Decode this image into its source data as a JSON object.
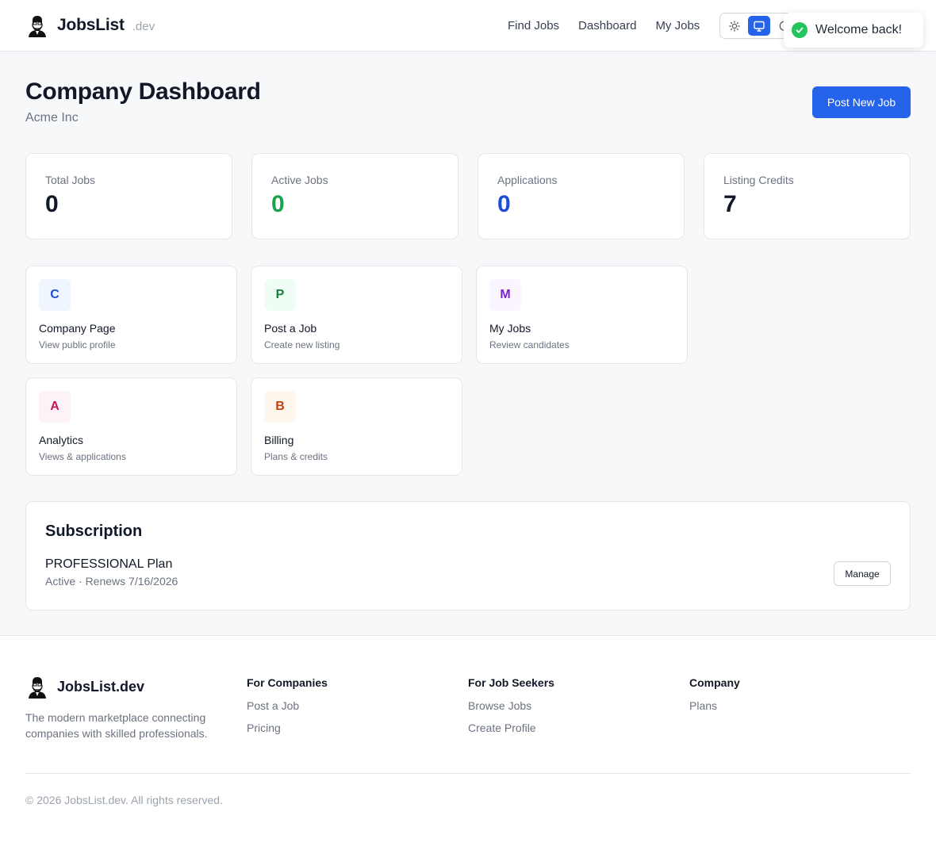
{
  "header": {
    "brand_name": "JobsList",
    "brand_suffix": ".dev",
    "nav": [
      "Find Jobs",
      "Dashboard",
      "My Jobs"
    ],
    "theme_modes": [
      "light",
      "system",
      "dark"
    ],
    "active_theme": "system"
  },
  "toast": {
    "message": "Welcome back!"
  },
  "page": {
    "title": "Company Dashboard",
    "company": "Acme Inc",
    "post_button": "Post New Job"
  },
  "stats": [
    {
      "label": "Total Jobs",
      "value": "0",
      "color": "#111827"
    },
    {
      "label": "Active Jobs",
      "value": "0",
      "color": "#16a34a"
    },
    {
      "label": "Applications",
      "value": "0",
      "color": "#1d4ed8"
    },
    {
      "label": "Listing Credits",
      "value": "7",
      "color": "#111827"
    }
  ],
  "tiles": [
    {
      "letter": "C",
      "title": "Company Page",
      "desc": "View public profile",
      "bg": "#eff6ff",
      "fg": "#1d4ed8"
    },
    {
      "letter": "P",
      "title": "Post a Job",
      "desc": "Create new listing",
      "bg": "#f0fdf4",
      "fg": "#15803d"
    },
    {
      "letter": "M",
      "title": "My Jobs",
      "desc": "Review candidates",
      "bg": "#faf5ff",
      "fg": "#7e22ce"
    },
    {
      "letter": "A",
      "title": "Analytics",
      "desc": "Views & applications",
      "bg": "#fdf2f8",
      "fg": "#be185d"
    },
    {
      "letter": "B",
      "title": "Billing",
      "desc": "Plans & credits",
      "bg": "#fff7ed",
      "fg": "#c2410c"
    }
  ],
  "subscription": {
    "title": "Subscription",
    "plan": "PROFESSIONAL Plan",
    "status": "Active · Renews 7/16/2026",
    "manage_label": "Manage"
  },
  "footer": {
    "brand": "JobsList.dev",
    "tagline": "The modern marketplace connecting companies with skilled professionals.",
    "columns": [
      {
        "heading": "For Companies",
        "links": [
          "Post a Job",
          "Pricing"
        ]
      },
      {
        "heading": "For Job Seekers",
        "links": [
          "Browse Jobs",
          "Create Profile"
        ]
      },
      {
        "heading": "Company",
        "links": [
          "Plans"
        ]
      }
    ],
    "copyright": "© 2026 JobsList.dev. All rights reserved."
  }
}
